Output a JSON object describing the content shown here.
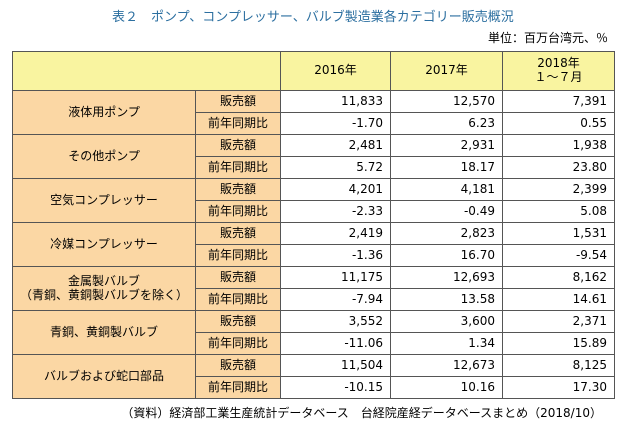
{
  "title": "表２　ポンプ、コンプレッサー、バルブ製造業各カテゴリー販売概況",
  "unit": "単位：百万台湾元、％",
  "header": {
    "empty": "",
    "col2016": "2016年",
    "col2017": "2017年",
    "col2018_line1": "2018年",
    "col2018_line2": "１〜７月"
  },
  "rows": [
    {
      "category": "液体用ポンプ",
      "sales_label": "販売額",
      "sales": [
        "11,833",
        "12,570",
        "7,391"
      ],
      "yoy_label": "前年同期比",
      "yoy": [
        "-1.70",
        "6.23",
        "0.55"
      ]
    },
    {
      "category": "その他ポンプ",
      "sales_label": "販売額",
      "sales": [
        "2,481",
        "2,931",
        "1,938"
      ],
      "yoy_label": "前年同期比",
      "yoy": [
        "5.72",
        "18.17",
        "23.80"
      ]
    },
    {
      "category": "空気コンプレッサー",
      "sales_label": "販売額",
      "sales": [
        "4,201",
        "4,181",
        "2,399"
      ],
      "yoy_label": "前年同期比",
      "yoy": [
        "-2.33",
        "-0.49",
        "5.08"
      ]
    },
    {
      "category": "冷媒コンプレッサー",
      "sales_label": "販売額",
      "sales": [
        "2,419",
        "2,823",
        "1,531"
      ],
      "yoy_label": "前年同期比",
      "yoy": [
        "-1.36",
        "16.70",
        "-9.54"
      ]
    },
    {
      "category": "金属製バルブ",
      "category_line2": "（青銅、黄銅製バルブを除く）",
      "sales_label": "販売額",
      "sales": [
        "11,175",
        "12,693",
        "8,162"
      ],
      "yoy_label": "前年同期比",
      "yoy": [
        "-7.94",
        "13.58",
        "14.61"
      ]
    },
    {
      "category": "青銅、黄銅製バルブ",
      "sales_label": "販売額",
      "sales": [
        "3,552",
        "3,600",
        "2,371"
      ],
      "yoy_label": "前年同期比",
      "yoy": [
        "-11.06",
        "1.34",
        "15.89"
      ]
    },
    {
      "category": "バルブおよび蛇口部品",
      "sales_label": "販売額",
      "sales": [
        "11,504",
        "12,673",
        "8,125"
      ],
      "yoy_label": "前年同期比",
      "yoy": [
        "-10.15",
        "10.16",
        "17.30"
      ]
    }
  ],
  "source": "（資料）経済部工業生産統計データベース　台経院産経データベースまとめ（2018/10）",
  "colors": {
    "header_bg": "#f9f4a0",
    "category_bg": "#fbd7a4",
    "title": "#2c6fa0"
  }
}
